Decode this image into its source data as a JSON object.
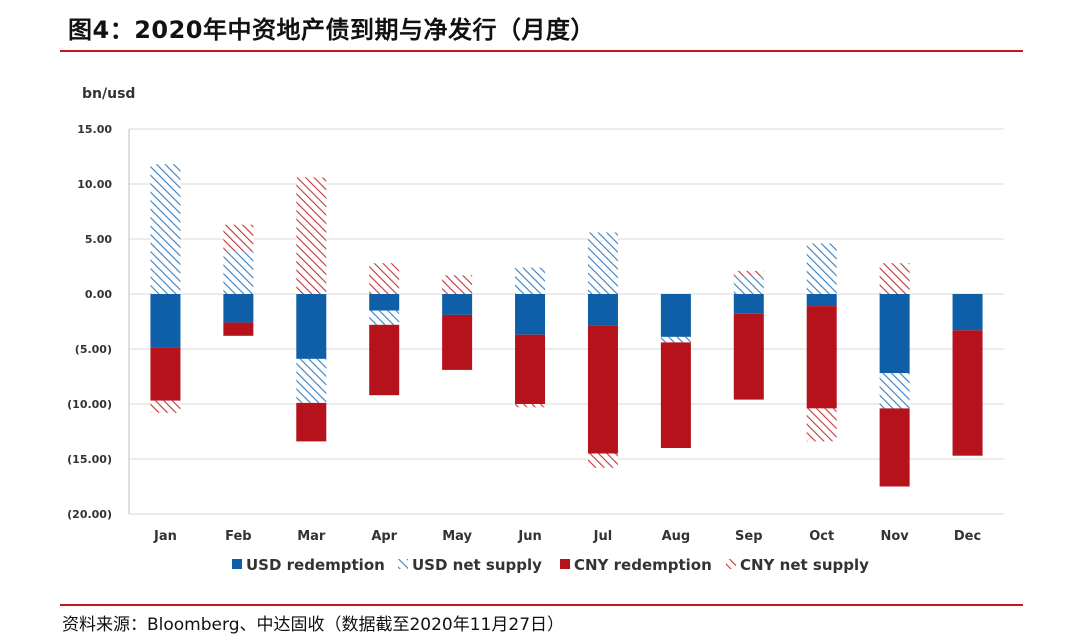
{
  "title": "图4：2020年中资地产债到期与净发行（月度）",
  "source": "资料来源：Bloomberg、中达固收（数据截至2020年11月27日）",
  "chart_data": {
    "type": "bar",
    "stacked": true,
    "ylabel": "bn/usd",
    "ylim": [
      -20,
      15
    ],
    "y_ticks": [
      "15.00",
      "10.00",
      "5.00",
      "0.00",
      "(5.00)",
      "(10.00)",
      "(15.00)",
      "(20.00)"
    ],
    "categories": [
      "Jan",
      "Feb",
      "Mar",
      "Apr",
      "May",
      "Jun",
      "Jul",
      "Aug",
      "Sep",
      "Oct",
      "Nov",
      "Dec"
    ],
    "grid": true,
    "legend_position": "bottom",
    "colors": {
      "usd": "#0f5fa8",
      "cny": "#b5121b",
      "usd_hatch": "#3a7fbf",
      "cny_hatch": "#c2323a"
    },
    "series": [
      {
        "name": "USD redemption",
        "style": "solid",
        "color": "#0f5fa8",
        "values": [
          -4.9,
          -2.6,
          -5.9,
          -1.5,
          -1.9,
          -3.7,
          -2.9,
          -3.9,
          -1.8,
          -1.1,
          -7.2,
          -3.3
        ]
      },
      {
        "name": "USD net supply",
        "style": "hatch",
        "color": "#3a7fbf",
        "values": [
          11.8,
          3.9,
          -4.0,
          -1.3,
          0.0,
          2.4,
          5.6,
          -0.5,
          1.6,
          4.6,
          -3.2,
          0.0
        ]
      },
      {
        "name": "CNY redemption",
        "style": "solid",
        "color": "#b5121b",
        "values": [
          -4.8,
          -1.2,
          -3.5,
          -6.4,
          -5.0,
          -6.3,
          -11.6,
          -9.6,
          -7.8,
          -9.3,
          -7.1,
          -11.4
        ]
      },
      {
        "name": "CNY net supply",
        "style": "hatch",
        "color": "#c2323a",
        "values": [
          -1.1,
          2.4,
          10.6,
          2.8,
          1.7,
          -0.3,
          -1.3,
          0.0,
          0.5,
          -3.0,
          2.8,
          0.0
        ]
      }
    ]
  }
}
